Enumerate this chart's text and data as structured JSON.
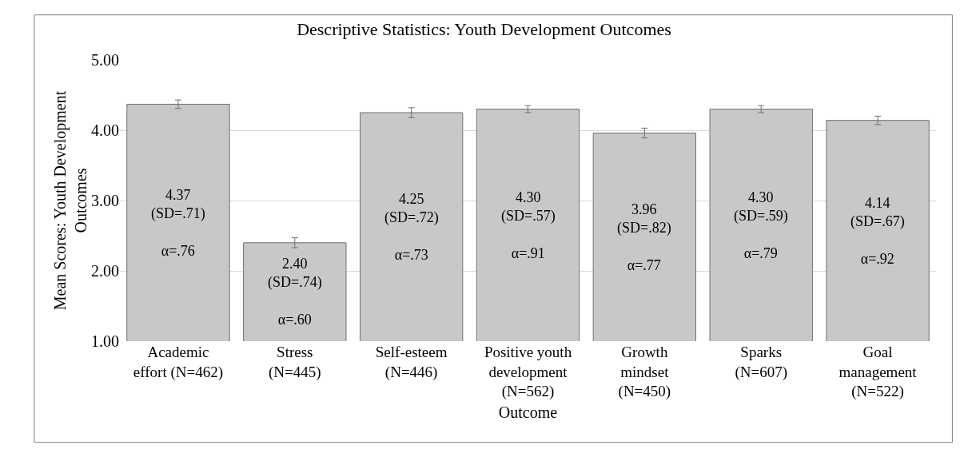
{
  "chart_data": {
    "type": "bar",
    "title": "Descriptive Statistics: Youth Development Outcomes",
    "xlabel": "Outcome",
    "ylabel": "Mean Scores: Youth Development\nOutcomes",
    "categories": [
      "Academic\neffort (N=462)",
      "Stress\n(N=445)",
      "Self-esteem\n(N=446)",
      "Positive youth\ndevelopment\n(N=562)",
      "Growth\nmindset\n(N=450)",
      "Sparks\n(N=607)",
      "Goal\nmanagement\n(N=522)"
    ],
    "values": [
      4.37,
      2.4,
      4.25,
      4.3,
      3.96,
      4.3,
      4.14
    ],
    "errors": [
      0.06,
      0.07,
      0.07,
      0.05,
      0.07,
      0.05,
      0.06
    ],
    "value_labels": [
      "4.37\n(SD=.71)\n\nα=.76",
      "2.40\n(SD=.74)\n\nα=.60",
      "4.25\n(SD=.72)\n\nα=.73",
      "4.30\n(SD=.57)\n\nα=.91",
      "3.96\n(SD=.82)\n\nα=.77",
      "4.30\n(SD=.59)\n\nα=.79",
      "4.14\n(SD=.67)\n\nα=.92"
    ],
    "color": "#c8c8c8",
    "ylim": [
      1,
      5
    ],
    "yticks": [
      {
        "value": 1,
        "label": "1.00"
      },
      {
        "value": 2,
        "label": "2.00"
      },
      {
        "value": 3,
        "label": "3.00"
      },
      {
        "value": 4,
        "label": "4.00"
      },
      {
        "value": 5,
        "label": "5.00"
      }
    ],
    "grid": "y"
  }
}
